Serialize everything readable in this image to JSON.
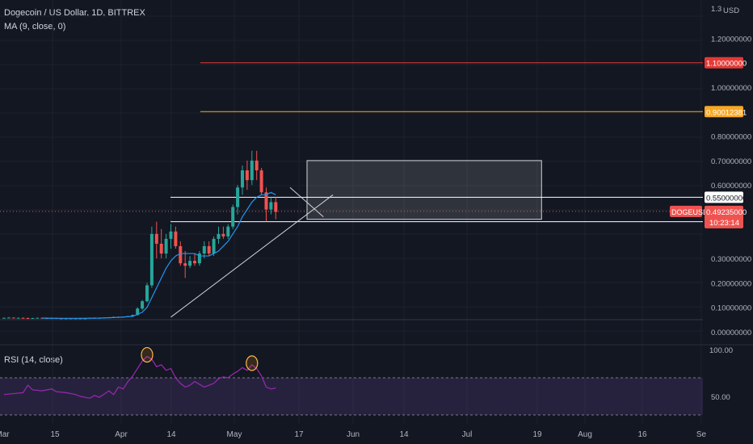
{
  "header": {
    "title": "Dogecoin / US Dollar, 1D, BITTREX",
    "ma_label": "MA (9, close, 0)",
    "rsi_label": "RSI (14, close)"
  },
  "colors": {
    "background": "#131722",
    "up": "#26a69a",
    "down": "#ef5350",
    "ma_line": "#2196f3",
    "red_level": "#e53935",
    "orange_level": "#f9a825",
    "white_level": "#ffffff",
    "rsi_line": "#9c27b0",
    "rsi_band": "rgba(126,87,194,0.18)"
  },
  "chart_data": {
    "type": "candlestick",
    "symbol": "DOGEUSD",
    "y_axis": {
      "currency": "USD",
      "top_label": "1.3",
      "ticks": [
        "1.20000000",
        "1.00000000",
        "0.80000000",
        "0.70000000",
        "0.60000000",
        "0.30000000",
        "0.20000000",
        "0.10000000",
        "0.00000000"
      ]
    },
    "x_axis": {
      "ticks": [
        "Mar",
        "15",
        "Apr",
        "14",
        "May",
        "17",
        "Jun",
        "14",
        "Jul",
        "19",
        "Aug",
        "16",
        "Se"
      ]
    },
    "price_levels": [
      {
        "value": 1.1,
        "label": "1.10000000",
        "color": "#e53935"
      },
      {
        "value": 0.90012381,
        "label": "0.90012381",
        "color": "#f9a825"
      },
      {
        "value": 0.55,
        "label": "0.55000000",
        "color": "#ffffff"
      },
      {
        "value": 0.45,
        "label": "0.45000000",
        "color": "#ffffff"
      }
    ],
    "last_price": {
      "symbol": "DOGEUSD",
      "value": 0.49235,
      "label": "0.49235000",
      "countdown": "10:23:14"
    },
    "projection_box": {
      "start_day": 60,
      "end_day": 120,
      "top": 0.7,
      "bottom": 0.46
    },
    "trendlines": [
      {
        "from": [
          35,
          0.06
        ],
        "to": [
          69,
          0.56
        ]
      },
      {
        "from": [
          60,
          0.59
        ],
        "to": [
          67,
          0.47
        ]
      }
    ],
    "candles": [
      [
        0,
        0.056,
        0.058,
        0.054,
        0.057
      ],
      [
        1,
        0.057,
        0.06,
        0.055,
        0.058
      ],
      [
        2,
        0.058,
        0.059,
        0.055,
        0.056
      ],
      [
        3,
        0.056,
        0.058,
        0.054,
        0.057
      ],
      [
        4,
        0.057,
        0.059,
        0.055,
        0.056
      ],
      [
        5,
        0.056,
        0.058,
        0.054,
        0.055
      ],
      [
        6,
        0.055,
        0.057,
        0.053,
        0.056
      ],
      [
        7,
        0.056,
        0.058,
        0.054,
        0.057
      ],
      [
        8,
        0.057,
        0.058,
        0.055,
        0.056
      ],
      [
        9,
        0.056,
        0.058,
        0.054,
        0.055
      ],
      [
        10,
        0.055,
        0.057,
        0.053,
        0.056
      ],
      [
        11,
        0.056,
        0.057,
        0.054,
        0.055
      ],
      [
        12,
        0.055,
        0.057,
        0.053,
        0.054
      ],
      [
        13,
        0.054,
        0.056,
        0.052,
        0.055
      ],
      [
        14,
        0.055,
        0.056,
        0.053,
        0.054
      ],
      [
        15,
        0.054,
        0.056,
        0.052,
        0.055
      ],
      [
        16,
        0.055,
        0.057,
        0.053,
        0.054
      ],
      [
        17,
        0.054,
        0.056,
        0.052,
        0.055
      ],
      [
        18,
        0.055,
        0.058,
        0.054,
        0.057
      ],
      [
        19,
        0.057,
        0.059,
        0.055,
        0.056
      ],
      [
        20,
        0.056,
        0.058,
        0.054,
        0.057
      ],
      [
        21,
        0.057,
        0.059,
        0.055,
        0.058
      ],
      [
        22,
        0.058,
        0.06,
        0.056,
        0.059
      ],
      [
        23,
        0.059,
        0.062,
        0.057,
        0.061
      ],
      [
        24,
        0.061,
        0.063,
        0.058,
        0.06
      ],
      [
        25,
        0.06,
        0.062,
        0.058,
        0.062
      ],
      [
        26,
        0.062,
        0.065,
        0.06,
        0.064
      ],
      [
        27,
        0.064,
        0.07,
        0.062,
        0.069
      ],
      [
        28,
        0.069,
        0.1,
        0.066,
        0.095
      ],
      [
        29,
        0.095,
        0.13,
        0.088,
        0.125
      ],
      [
        30,
        0.125,
        0.2,
        0.12,
        0.19
      ],
      [
        31,
        0.19,
        0.43,
        0.18,
        0.4
      ],
      [
        32,
        0.4,
        0.45,
        0.3,
        0.36
      ],
      [
        33,
        0.36,
        0.42,
        0.3,
        0.32
      ],
      [
        34,
        0.32,
        0.4,
        0.3,
        0.38
      ],
      [
        35,
        0.38,
        0.44,
        0.34,
        0.41
      ],
      [
        36,
        0.41,
        0.43,
        0.34,
        0.35
      ],
      [
        37,
        0.35,
        0.37,
        0.27,
        0.28
      ],
      [
        38,
        0.28,
        0.33,
        0.22,
        0.27
      ],
      [
        39,
        0.27,
        0.31,
        0.26,
        0.29
      ],
      [
        40,
        0.29,
        0.32,
        0.27,
        0.28
      ],
      [
        41,
        0.28,
        0.33,
        0.27,
        0.32
      ],
      [
        42,
        0.32,
        0.37,
        0.3,
        0.35
      ],
      [
        43,
        0.35,
        0.37,
        0.31,
        0.32
      ],
      [
        44,
        0.32,
        0.39,
        0.31,
        0.38
      ],
      [
        45,
        0.38,
        0.43,
        0.36,
        0.4
      ],
      [
        46,
        0.4,
        0.43,
        0.38,
        0.39
      ],
      [
        47,
        0.39,
        0.44,
        0.38,
        0.43
      ],
      [
        48,
        0.43,
        0.52,
        0.42,
        0.51
      ],
      [
        49,
        0.51,
        0.6,
        0.48,
        0.59
      ],
      [
        50,
        0.59,
        0.68,
        0.56,
        0.66
      ],
      [
        51,
        0.66,
        0.7,
        0.58,
        0.62
      ],
      [
        52,
        0.62,
        0.74,
        0.6,
        0.7
      ],
      [
        53,
        0.7,
        0.74,
        0.62,
        0.66
      ],
      [
        54,
        0.66,
        0.67,
        0.56,
        0.57
      ],
      [
        55,
        0.57,
        0.59,
        0.45,
        0.5
      ],
      [
        56,
        0.5,
        0.55,
        0.48,
        0.53
      ],
      [
        57,
        0.53,
        0.55,
        0.46,
        0.49
      ]
    ],
    "ma": [
      [
        8,
        0.056
      ],
      [
        12,
        0.055
      ],
      [
        16,
        0.055
      ],
      [
        20,
        0.056
      ],
      [
        24,
        0.059
      ],
      [
        27,
        0.063
      ],
      [
        29,
        0.08
      ],
      [
        30,
        0.1
      ],
      [
        31,
        0.14
      ],
      [
        32,
        0.18
      ],
      [
        33,
        0.22
      ],
      [
        34,
        0.26
      ],
      [
        35,
        0.29
      ],
      [
        36,
        0.31
      ],
      [
        37,
        0.32
      ],
      [
        38,
        0.32
      ],
      [
        39,
        0.32
      ],
      [
        40,
        0.32
      ],
      [
        41,
        0.31
      ],
      [
        42,
        0.31
      ],
      [
        43,
        0.31
      ],
      [
        44,
        0.32
      ],
      [
        45,
        0.33
      ],
      [
        46,
        0.35
      ],
      [
        47,
        0.37
      ],
      [
        48,
        0.4
      ],
      [
        49,
        0.43
      ],
      [
        50,
        0.47
      ],
      [
        51,
        0.5
      ],
      [
        52,
        0.53
      ],
      [
        53,
        0.55
      ],
      [
        54,
        0.56
      ],
      [
        55,
        0.56
      ],
      [
        56,
        0.57
      ],
      [
        57,
        0.56
      ]
    ],
    "rsi": {
      "label": "RSI (14, close)",
      "ticks": [
        "100.00",
        "50.00"
      ],
      "upper_band": 70,
      "lower_band": 30,
      "values": [
        [
          0,
          52
        ],
        [
          2,
          53
        ],
        [
          4,
          54
        ],
        [
          5,
          62
        ],
        [
          6,
          57
        ],
        [
          8,
          56
        ],
        [
          10,
          58
        ],
        [
          11,
          55
        ],
        [
          13,
          54
        ],
        [
          15,
          52
        ],
        [
          16,
          50
        ],
        [
          18,
          48
        ],
        [
          19,
          51
        ],
        [
          20,
          49
        ],
        [
          22,
          56
        ],
        [
          23,
          52
        ],
        [
          24,
          60
        ],
        [
          25,
          58
        ],
        [
          26,
          66
        ],
        [
          27,
          72
        ],
        [
          28,
          80
        ],
        [
          29,
          88
        ],
        [
          30,
          93
        ],
        [
          31,
          90
        ],
        [
          32,
          82
        ],
        [
          33,
          84
        ],
        [
          34,
          78
        ],
        [
          35,
          80
        ],
        [
          36,
          70
        ],
        [
          37,
          64
        ],
        [
          38,
          60
        ],
        [
          39,
          62
        ],
        [
          40,
          66
        ],
        [
          41,
          63
        ],
        [
          42,
          60
        ],
        [
          43,
          62
        ],
        [
          44,
          64
        ],
        [
          45,
          69
        ],
        [
          46,
          71
        ],
        [
          47,
          70
        ],
        [
          48,
          74
        ],
        [
          49,
          77
        ],
        [
          50,
          81
        ],
        [
          51,
          78
        ],
        [
          52,
          84
        ],
        [
          53,
          80
        ],
        [
          54,
          72
        ],
        [
          55,
          60
        ],
        [
          56,
          58
        ],
        [
          57,
          59
        ]
      ],
      "highlights": [
        30,
        52
      ]
    }
  }
}
